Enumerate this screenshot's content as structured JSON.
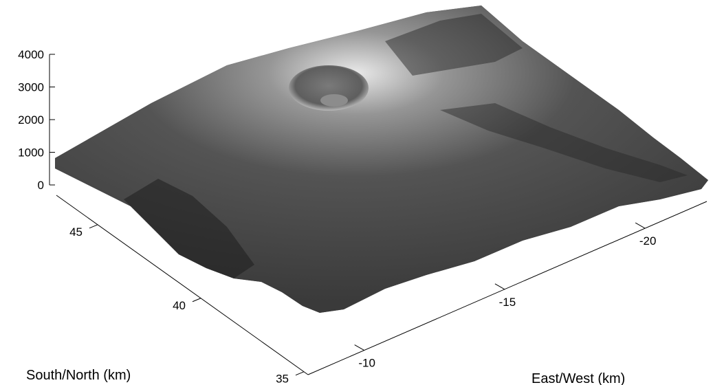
{
  "chart_data": {
    "type": "surface",
    "colormap": "grayscale",
    "lighting": "shaded",
    "xlabel": "East/West (km)",
    "ylabel": "South/North (km)",
    "zlabel": "",
    "x_ticks": [
      -10,
      -15,
      -20
    ],
    "x_tick_labels": [
      "-10",
      "-15",
      "-20"
    ],
    "y_ticks": [
      35,
      40,
      45
    ],
    "y_tick_labels": [
      "35",
      "40",
      "45"
    ],
    "z_ticks": [
      0,
      1000,
      2000,
      3000,
      4000
    ],
    "z_tick_labels": [
      "0",
      "1000",
      "2000",
      "3000",
      "4000"
    ],
    "zlim": [
      0,
      4000
    ],
    "grid": false
  }
}
